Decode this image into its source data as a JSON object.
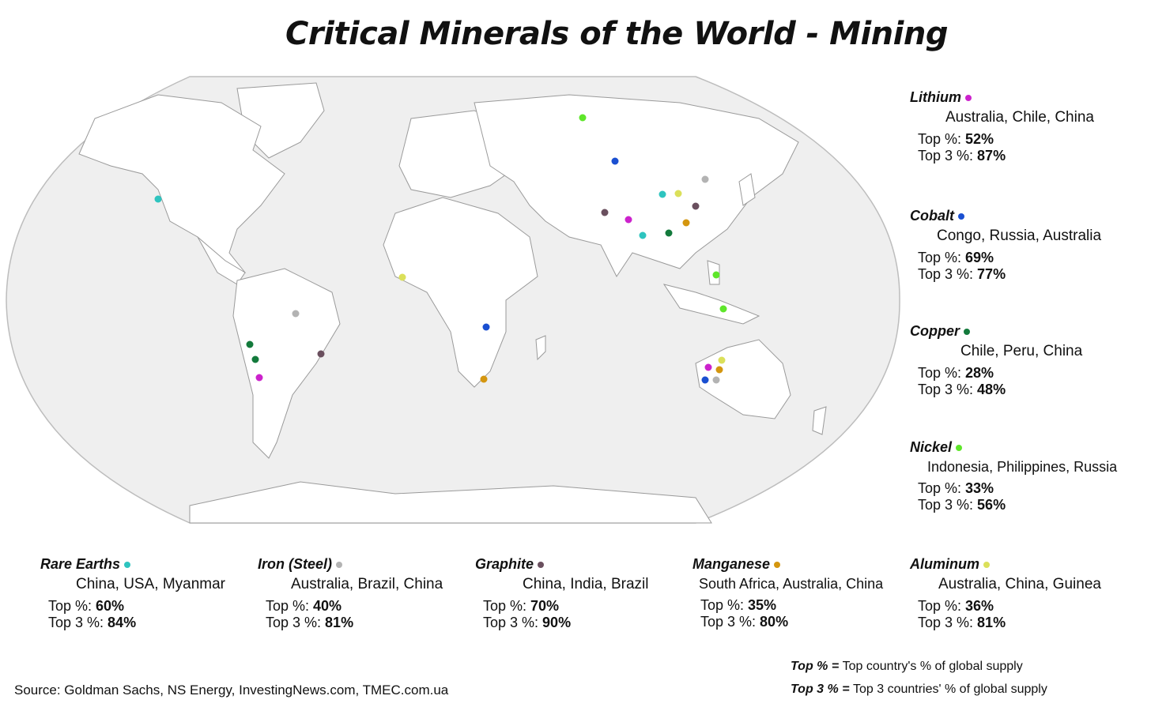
{
  "title": "Critical Minerals of the World - Mining",
  "minerals": {
    "lithium": {
      "name": "Lithium",
      "color": "#cc22cc",
      "countries": "Australia, Chile, China",
      "top_label": "Top %: ",
      "top": "52%",
      "top3_label": "Top 3 %: ",
      "top3": "87%"
    },
    "cobalt": {
      "name": "Cobalt",
      "color": "#1a4fd1",
      "countries": "Congo, Russia, Australia",
      "top_label": "Top %: ",
      "top": "69%",
      "top3_label": "Top 3 %: ",
      "top3": "77%"
    },
    "copper": {
      "name": "Copper",
      "color": "#137a3c",
      "countries": "Chile, Peru, China",
      "top_label": "Top %: ",
      "top": "28%",
      "top3_label": "Top 3 %: ",
      "top3": "48%"
    },
    "nickel": {
      "name": "Nickel",
      "color": "#5ee62a",
      "countries": "Indonesia, Philippines, Russia",
      "top_label": "Top %: ",
      "top": "33%",
      "top3_label": "Top 3 %: ",
      "top3": "56%"
    },
    "rare": {
      "name": "Rare Earths",
      "color": "#2ec4bf",
      "countries": "China, USA, Myanmar",
      "top_label": "Top %: ",
      "top": "60%",
      "top3_label": "Top 3 %: ",
      "top3": "84%"
    },
    "iron": {
      "name": "Iron (Steel)",
      "color": "#b3b3b3",
      "countries": "Australia, Brazil, China",
      "top_label": "Top %: ",
      "top": "40%",
      "top3_label": "Top 3 %: ",
      "top3": "81%"
    },
    "graphite": {
      "name": "Graphite",
      "color": "#6a4f5e",
      "countries": "China, India, Brazil",
      "top_label": "Top %: ",
      "top": "70%",
      "top3_label": "Top 3 %: ",
      "top3": "90%"
    },
    "manganese": {
      "name": "Manganese",
      "color": "#d4960f",
      "countries": "South Africa, Australia, China",
      "top_label": "Top %: ",
      "top": "35%",
      "top3_label": "Top 3 %: ",
      "top3": "80%"
    },
    "aluminum": {
      "name": "Aluminum",
      "color": "#dbe05a",
      "countries": "Australia, China, Guinea",
      "top_label": "Top %: ",
      "top": "36%",
      "top3_label": "Top 3 %: ",
      "top3": "81%"
    }
  },
  "legend": {
    "top_key": "Top % = ",
    "top_desc": "Top country's % of global supply",
    "top3_key": "Top 3 % = ",
    "top3_desc": "Top 3 countries' % of global supply"
  },
  "source": "Source: Goldman Sachs, NS Energy, InvestingNews.com, TMEC.com.ua"
}
